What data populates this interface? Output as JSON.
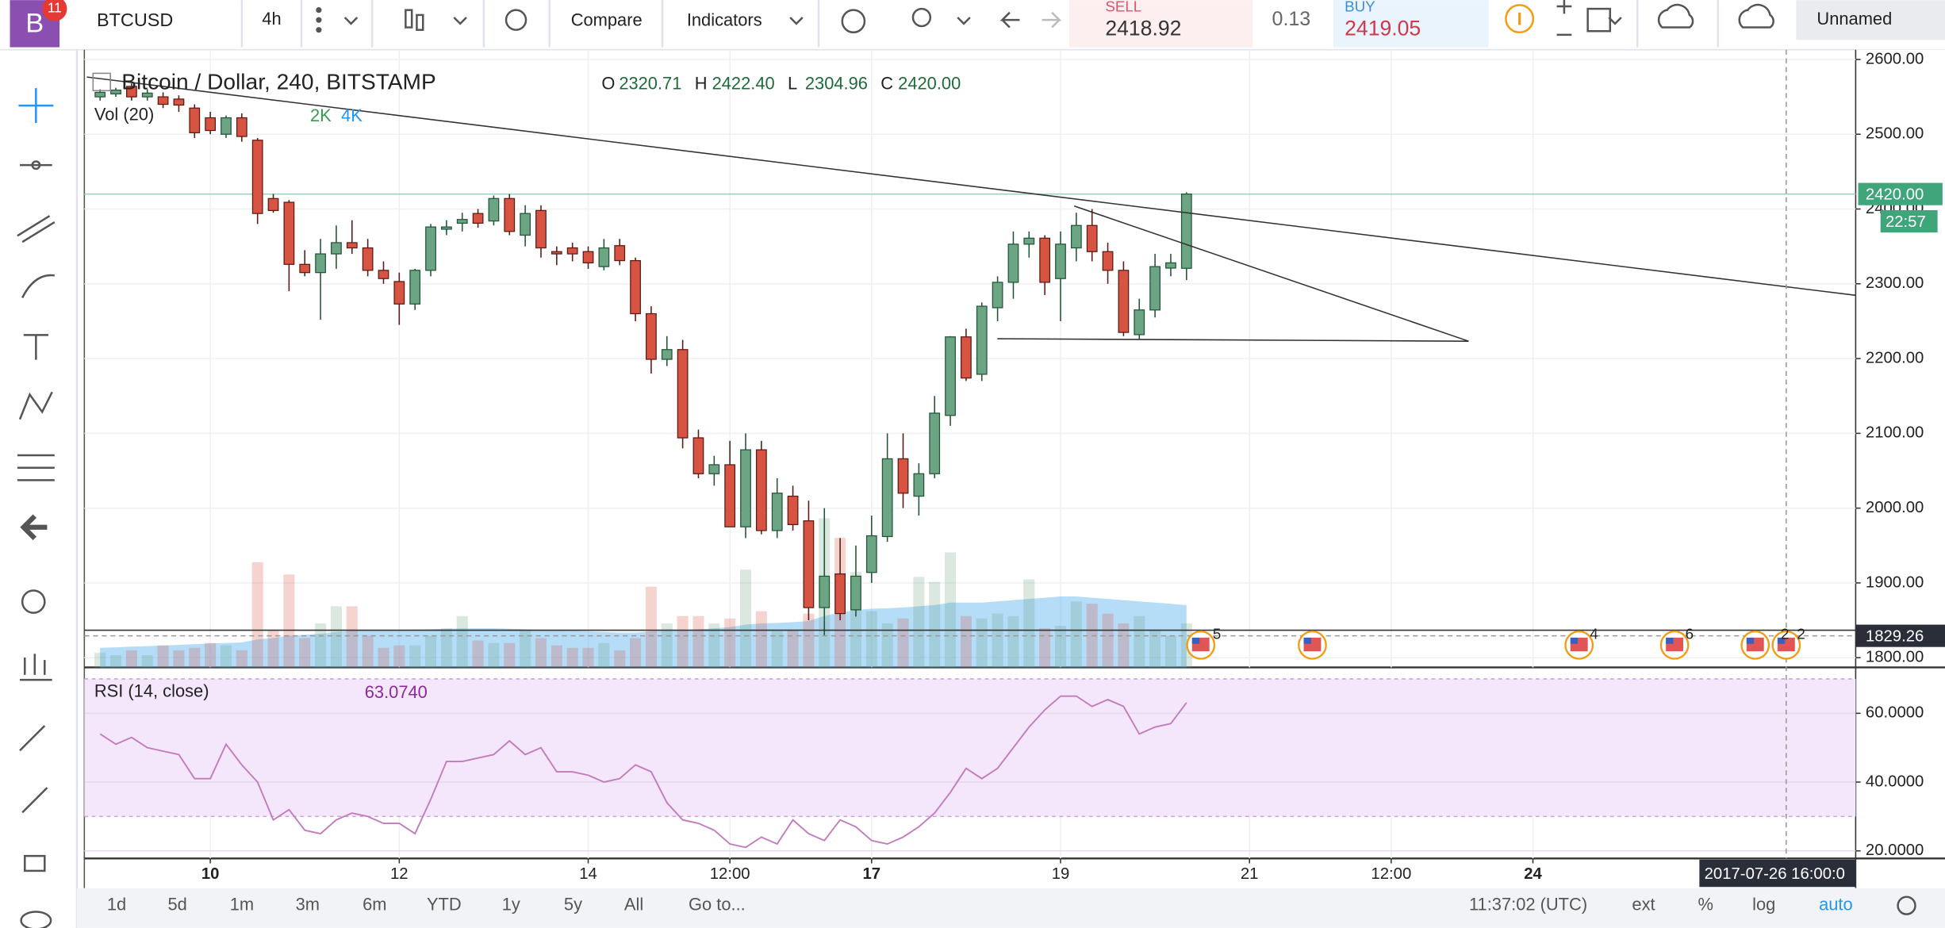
{
  "toolbar": {
    "logo": "B",
    "notification_count": "11",
    "symbol": "BTCUSD",
    "interval": "4h",
    "compare": "Compare",
    "indicators": "Indicators",
    "sell_label": "SELL",
    "sell_price": "2418.92",
    "spread": "0.13",
    "buy_label": "BUY",
    "buy_price": "2419.05",
    "layout_name": "Unnamed"
  },
  "chart_data": {
    "type": "candlestick",
    "title": "Bitcoin / Dollar, 240, BITSTAMP",
    "ohlc_legend": [
      {
        "key": "O",
        "value": "2320.71"
      },
      {
        "key": "H",
        "value": "2422.40"
      },
      {
        "key": "L",
        "value": "2304.96"
      },
      {
        "key": "C",
        "value": "2420.00"
      }
    ],
    "up_color": "#6ba583",
    "down_color": "#d75442",
    "ohlc": [
      [
        2550,
        2560,
        2545,
        2556
      ],
      [
        2554,
        2562,
        2550,
        2559
      ],
      [
        2564,
        2568,
        2545,
        2550
      ],
      [
        2550,
        2560,
        2545,
        2555
      ],
      [
        2550,
        2556,
        2535,
        2540
      ],
      [
        2547,
        2552,
        2530,
        2539
      ],
      [
        2535,
        2540,
        2495,
        2502
      ],
      [
        2522,
        2530,
        2500,
        2505
      ],
      [
        2500,
        2525,
        2495,
        2522
      ],
      [
        2522,
        2528,
        2490,
        2497
      ],
      [
        2492,
        2495,
        2380,
        2394
      ],
      [
        2414,
        2420,
        2395,
        2398
      ],
      [
        2409,
        2412,
        2290,
        2326
      ],
      [
        2326,
        2345,
        2310,
        2315
      ],
      [
        2315,
        2360,
        2252,
        2340
      ],
      [
        2340,
        2378,
        2320,
        2355
      ],
      [
        2355,
        2385,
        2340,
        2348
      ],
      [
        2348,
        2360,
        2310,
        2318
      ],
      [
        2318,
        2330,
        2300,
        2307
      ],
      [
        2303,
        2315,
        2245,
        2273
      ],
      [
        2273,
        2320,
        2265,
        2318
      ],
      [
        2318,
        2380,
        2310,
        2376
      ],
      [
        2373,
        2385,
        2365,
        2376
      ],
      [
        2381,
        2395,
        2370,
        2386
      ],
      [
        2394,
        2400,
        2375,
        2381
      ],
      [
        2384,
        2418,
        2378,
        2414
      ],
      [
        2414,
        2420,
        2365,
        2370
      ],
      [
        2365,
        2405,
        2350,
        2394
      ],
      [
        2398,
        2405,
        2335,
        2348
      ],
      [
        2343,
        2350,
        2325,
        2340
      ],
      [
        2348,
        2355,
        2330,
        2340
      ],
      [
        2343,
        2350,
        2320,
        2328
      ],
      [
        2323,
        2360,
        2318,
        2348
      ],
      [
        2351,
        2360,
        2325,
        2331
      ],
      [
        2331,
        2335,
        2250,
        2260
      ],
      [
        2260,
        2270,
        2180,
        2199
      ],
      [
        2199,
        2230,
        2190,
        2212
      ],
      [
        2212,
        2225,
        2080,
        2094
      ],
      [
        2094,
        2105,
        2040,
        2046
      ],
      [
        2046,
        2070,
        2030,
        2058
      ],
      [
        2058,
        2090,
        1975,
        1975
      ],
      [
        1975,
        2100,
        1960,
        2078
      ],
      [
        2078,
        2090,
        1965,
        1970
      ],
      [
        1970,
        2040,
        1960,
        2020
      ],
      [
        2016,
        2030,
        1970,
        1978
      ],
      [
        1983,
        2010,
        1850,
        1867
      ],
      [
        1867,
        2000,
        1830,
        1909
      ],
      [
        1912,
        1960,
        1850,
        1859
      ],
      [
        1864,
        1950,
        1855,
        1909
      ],
      [
        1914,
        1990,
        1900,
        1963
      ],
      [
        1962,
        2100,
        1955,
        2066
      ],
      [
        2066,
        2100,
        2000,
        2020
      ],
      [
        2016,
        2060,
        1990,
        2046
      ],
      [
        2046,
        2150,
        2040,
        2127
      ],
      [
        2124,
        2230,
        2110,
        2229
      ],
      [
        2229,
        2240,
        2170,
        2174
      ],
      [
        2179,
        2275,
        2170,
        2270
      ],
      [
        2268,
        2310,
        2250,
        2302
      ],
      [
        2302,
        2370,
        2280,
        2353
      ],
      [
        2353,
        2370,
        2335,
        2361
      ],
      [
        2361,
        2365,
        2285,
        2302
      ],
      [
        2307,
        2370,
        2250,
        2353
      ],
      [
        2348,
        2395,
        2330,
        2378
      ],
      [
        2378,
        2400,
        2330,
        2343
      ],
      [
        2343,
        2355,
        2300,
        2318
      ],
      [
        2318,
        2330,
        2230,
        2235
      ],
      [
        2232,
        2280,
        2225,
        2265
      ],
      [
        2265,
        2340,
        2255,
        2323
      ],
      [
        2321,
        2340,
        2310,
        2328
      ],
      [
        2320.71,
        2422.4,
        2304.96,
        2420
      ]
    ],
    "xlim": [
      -1,
      111.5
    ],
    "ylim": [
      1787,
      2613
    ],
    "yticks": [
      {
        "value": 1800,
        "label": "1800.00"
      },
      {
        "value": 1900,
        "label": "1900.00"
      },
      {
        "value": 2000,
        "label": "2000.00"
      },
      {
        "value": 2100,
        "label": "2100.00"
      },
      {
        "value": 2200,
        "label": "2200.00"
      },
      {
        "value": 2300,
        "label": "2300.00"
      },
      {
        "value": 2400,
        "label": "2400.00"
      },
      {
        "value": 2500,
        "label": "2500.00"
      },
      {
        "value": 2600,
        "label": "2600.00"
      }
    ],
    "xticks": [
      {
        "value": 7,
        "label": "10",
        "bold": true
      },
      {
        "value": 19,
        "label": "12"
      },
      {
        "value": 31,
        "label": "14"
      },
      {
        "value": 40,
        "label": "12:00"
      },
      {
        "value": 49,
        "label": "17",
        "bold": true
      },
      {
        "value": 61,
        "label": "19"
      },
      {
        "value": 73,
        "label": "21"
      },
      {
        "value": 82,
        "label": "12:00"
      },
      {
        "value": 91,
        "label": "24",
        "bold": true
      }
    ],
    "grid": true,
    "last_price": {
      "value": 2420,
      "label": "2420.00"
    },
    "countdown": "22:57",
    "crosshair_price": {
      "value": 1829.26,
      "label": "1829.26"
    },
    "crosshair_time": "2017-07-26 16:00:0",
    "volume": {
      "label": "Vol (20)",
      "legend_values": [
        "2K",
        "4K"
      ],
      "vlim": [
        0,
        7000
      ],
      "ma_color": "#5ab4f0",
      "values": [
        600,
        500,
        700,
        500,
        900,
        700,
        800,
        1000,
        900,
        700,
        4300,
        1500,
        3800,
        1200,
        1800,
        2500,
        2500,
        1300,
        800,
        900,
        900,
        1300,
        1600,
        2100,
        1100,
        1000,
        1000,
        1500,
        1200,
        900,
        800,
        800,
        1000,
        700,
        1200,
        3300,
        1800,
        2100,
        2100,
        1800,
        2000,
        4000,
        2300,
        1500,
        1500,
        2200,
        6100,
        5300,
        3900,
        2300,
        1800,
        2000,
        3700,
        3500,
        4700,
        2100,
        2000,
        2200,
        2100,
        3600,
        1600,
        1700,
        2700,
        2600,
        2200,
        1800,
        2100,
        1500,
        1300,
        1800
      ],
      "ma": [
        800,
        820,
        850,
        870,
        900,
        920,
        950,
        980,
        1000,
        1020,
        1150,
        1200,
        1300,
        1330,
        1380,
        1450,
        1500,
        1520,
        1530,
        1540,
        1550,
        1560,
        1580,
        1600,
        1600,
        1600,
        1580,
        1560,
        1540,
        1520,
        1500,
        1480,
        1450,
        1420,
        1420,
        1480,
        1500,
        1520,
        1560,
        1600,
        1650,
        1750,
        1800,
        1820,
        1850,
        1900,
        2100,
        2250,
        2350,
        2400,
        2420,
        2450,
        2500,
        2550,
        2650,
        2650,
        2650,
        2700,
        2750,
        2800,
        2850,
        2900,
        2900,
        2850,
        2800,
        2750,
        2700,
        2650,
        2600,
        2550
      ]
    },
    "events": [
      "5",
      "4",
      "6",
      "2",
      "2"
    ]
  },
  "rsi": {
    "label": "RSI (14, close)",
    "current": "63.0740",
    "color": "#c27bbd",
    "band_color": "#f4e6fb",
    "band": [
      30,
      70
    ],
    "ylim": [
      17.8,
      70.1
    ],
    "yticks": [
      {
        "value": 20,
        "label": "20.0000"
      },
      {
        "value": 40,
        "label": "40.0000"
      },
      {
        "value": 60,
        "label": "60.0000"
      }
    ],
    "values": [
      54,
      51,
      53,
      50,
      49,
      48,
      41,
      41,
      51,
      45,
      40,
      29,
      32,
      26,
      25,
      29,
      31,
      30,
      28,
      28,
      25,
      35,
      46,
      46,
      47,
      48,
      52,
      48,
      50,
      43,
      43,
      42,
      40,
      41,
      45,
      43,
      34,
      29,
      28,
      26,
      22,
      21,
      24,
      22,
      29,
      25,
      23,
      29,
      27,
      23,
      22,
      24,
      27,
      31,
      37,
      44,
      41,
      44,
      50,
      56,
      61,
      65,
      65,
      62,
      64,
      62,
      54,
      56,
      57,
      63.074
    ]
  },
  "bottom_bar": {
    "ranges": [
      "1d",
      "5d",
      "1m",
      "3m",
      "6m",
      "YTD",
      "1y",
      "5y",
      "All",
      "Go to..."
    ],
    "clock": "11:37:02 (UTC)",
    "ext": "ext",
    "percent": "%",
    "log": "log",
    "auto": "auto"
  }
}
